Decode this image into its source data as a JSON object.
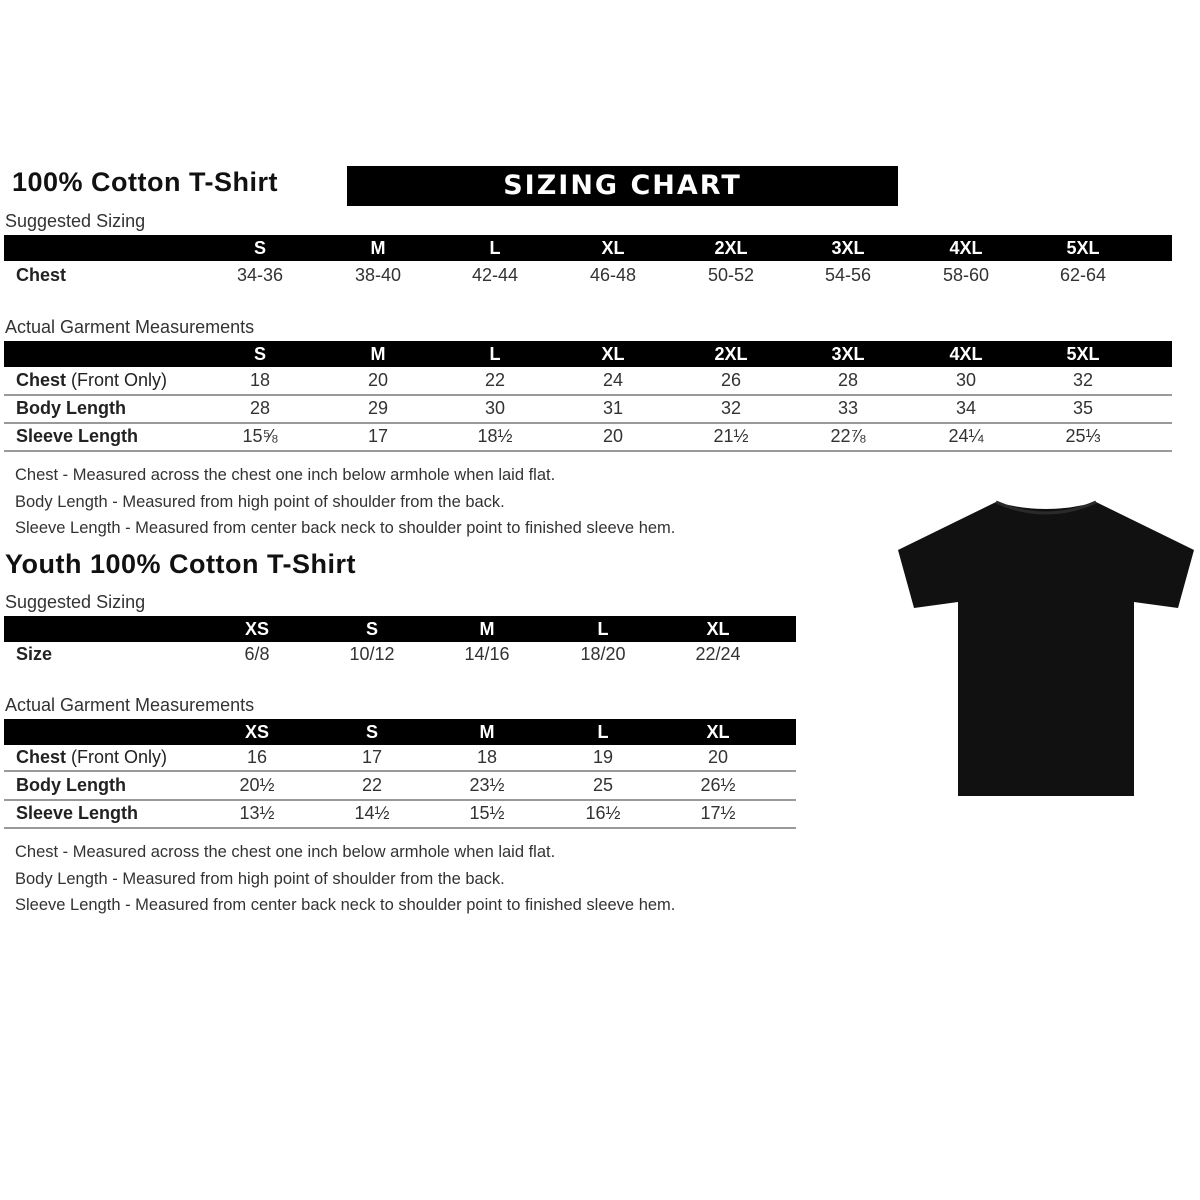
{
  "adult": {
    "title": "100% Cotton T-Shirt",
    "banner": "SIZING CHART",
    "suggested_label": "Suggested Sizing",
    "sizes": [
      "S",
      "M",
      "L",
      "XL",
      "2XL",
      "3XL",
      "4XL",
      "5XL"
    ],
    "suggested_rows": [
      {
        "label": "Chest",
        "values": [
          "34-36",
          "38-40",
          "42-44",
          "46-48",
          "50-52",
          "54-56",
          "58-60",
          "62-64"
        ]
      }
    ],
    "actual_label": "Actual Garment Measurements",
    "actual_rows": [
      {
        "label": "Chest",
        "label_suffix": "(Front Only)",
        "values": [
          "18",
          "20",
          "22",
          "24",
          "26",
          "28",
          "30",
          "32"
        ]
      },
      {
        "label": "Body Length",
        "label_suffix": "",
        "values": [
          "28",
          "29",
          "30",
          "31",
          "32",
          "33",
          "34",
          "35"
        ]
      },
      {
        "label": "Sleeve Length",
        "label_suffix": "",
        "values": [
          "15⅝",
          "17",
          "18½",
          "20",
          "21½",
          "22⅞",
          "24¼",
          "25⅓"
        ]
      }
    ],
    "notes": [
      "Chest - Measured across the chest one inch below armhole when laid flat.",
      "Body Length - Measured from high point of shoulder from the back.",
      "Sleeve Length - Measured from center back neck to shoulder point to finished sleeve hem."
    ]
  },
  "youth": {
    "title": "Youth 100% Cotton T-Shirt",
    "suggested_label": "Suggested Sizing",
    "sizes": [
      "XS",
      "S",
      "M",
      "L",
      "XL"
    ],
    "suggested_rows": [
      {
        "label": "Size",
        "values": [
          "6/8",
          "10/12",
          "14/16",
          "18/20",
          "22/24"
        ]
      }
    ],
    "actual_label": "Actual Garment Measurements",
    "actual_rows": [
      {
        "label": "Chest",
        "label_suffix": "(Front Only)",
        "values": [
          "16",
          "17",
          "18",
          "19",
          "20"
        ]
      },
      {
        "label": "Body Length",
        "label_suffix": "",
        "values": [
          "20½",
          "22",
          "23½",
          "25",
          "26½"
        ]
      },
      {
        "label": "Sleeve Length",
        "label_suffix": "",
        "values": [
          "13½",
          "14½",
          "15½",
          "16½",
          "17½"
        ]
      }
    ],
    "notes": [
      "Chest - Measured across the chest one inch below armhole when laid flat.",
      "Body Length - Measured from high point of shoulder from the back.",
      "Sleeve Length - Measured from center back neck to shoulder point to finished sleeve hem."
    ]
  },
  "image": {
    "icon": "tshirt-icon",
    "color": "#111111"
  }
}
